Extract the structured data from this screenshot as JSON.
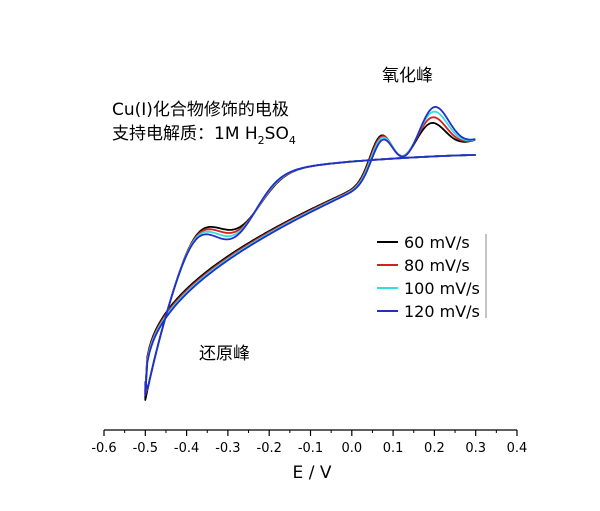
{
  "chart_data": {
    "type": "line",
    "title": "",
    "xlabel": "E / V",
    "ylabel": "",
    "xlim": [
      -0.6,
      0.4
    ],
    "x_ticks": [
      "-0.6",
      "-0.5",
      "-0.4",
      "-0.3",
      "-0.2",
      "-0.1",
      "0.0",
      "0.1",
      "0.2",
      "0.3",
      "0.4"
    ],
    "grid": false,
    "legend_position": "center-right",
    "annotations": {
      "info_line1": "Cu(I)化合物修饰的电极",
      "info_line2_prefix": "支持电解质：1M H",
      "info_line2_sub1": "2",
      "info_line2_mid": "SO",
      "info_line2_sub2": "4",
      "oxidation_peak": "氧化峰",
      "reduction_peak": "还原峰"
    },
    "series": [
      {
        "name": "60 mV/s",
        "color": "#000000",
        "ox1": 0.76,
        "ox2": 0.62,
        "red": 0.0
      },
      {
        "name": "80 mV/s",
        "color": "#d42020",
        "ox1": 0.75,
        "ox2": 0.72,
        "red": 0.12
      },
      {
        "name": "100 mV/s",
        "color": "#33dde0",
        "ox1": 0.73,
        "ox2": 0.82,
        "red": 0.24
      },
      {
        "name": "120 mV/s",
        "color": "#1f2fc8",
        "ox1": 0.7,
        "ox2": 0.9,
        "red": 0.36
      }
    ]
  }
}
